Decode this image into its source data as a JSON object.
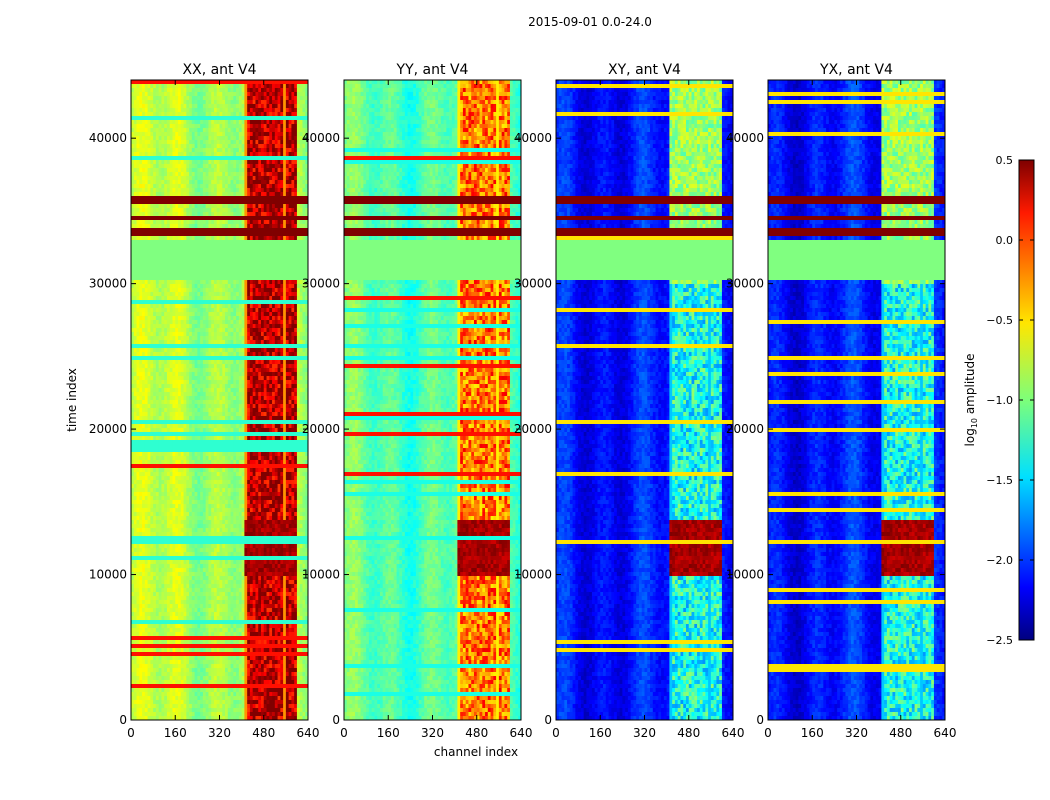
{
  "chart_data": {
    "type": "heatmap",
    "suptitle": "2015-09-01 0.0-24.0",
    "xlabel": "channel index",
    "ylabel": "time index",
    "xlim": [
      0,
      640
    ],
    "ylim": [
      0,
      44000
    ],
    "xticks": [
      0,
      160,
      320,
      480,
      640
    ],
    "yticks": [
      0,
      10000,
      20000,
      30000,
      40000
    ],
    "panels": [
      {
        "title": "XX, ant V4",
        "base": 0.55,
        "band_level": 1.0,
        "flag_low": 0.42
      },
      {
        "title": "YY, ant V4",
        "base": 0.46,
        "band_level": 0.82,
        "flag_low": 0.4
      },
      {
        "title": "XY, ant V4",
        "base": 0.14,
        "band_level": 0.45,
        "flag_low": 0.55
      },
      {
        "title": "YX, ant V4",
        "base": 0.14,
        "band_level": 0.45,
        "flag_low": 0.55
      }
    ],
    "rfi_band_channels": [
      410,
      600
    ],
    "masked_time_ranges": [
      [
        30200,
        33000
      ]
    ],
    "saturated_time_rows": [
      35600,
      35900,
      34500,
      33800,
      33300,
      13200,
      12600,
      11200,
      10500
    ],
    "colorbar": {
      "label": "log10 amplitude",
      "vmin": -2.5,
      "vmax": 0.5,
      "ticks": [
        "0.5",
        "0.0",
        "−0.5",
        "−1.0",
        "−1.5",
        "−2.0",
        "−2.5"
      ]
    }
  }
}
